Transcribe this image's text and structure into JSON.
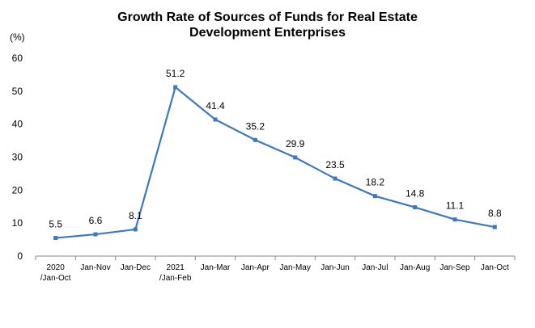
{
  "chart_data": {
    "type": "line",
    "title_line1": "Growth Rate of Sources of Funds for Real Estate",
    "title_line2": "Development Enterprises",
    "ylabel": "(%)",
    "xlabel": "",
    "ylim": [
      0,
      60
    ],
    "yticks": [
      "0",
      "10",
      "20",
      "30",
      "40",
      "50",
      "60"
    ],
    "grid": false,
    "categories": [
      [
        "2020",
        "/Jan-Oct"
      ],
      [
        "Jan-Nov"
      ],
      [
        "Jan-Dec"
      ],
      [
        "2021",
        "/Jan-Feb"
      ],
      [
        "Jan-Mar"
      ],
      [
        "Jan-Apr"
      ],
      [
        "Jan-May"
      ],
      [
        "Jan-Jun"
      ],
      [
        "Jan-Jul"
      ],
      [
        "Jan-Aug"
      ],
      [
        "Jan-Sep"
      ],
      [
        "Jan-Oct"
      ]
    ],
    "values": [
      5.5,
      6.6,
      8.1,
      51.2,
      41.4,
      35.2,
      29.9,
      23.5,
      18.2,
      14.8,
      11.1,
      8.8
    ],
    "labels": [
      "5.5",
      "6.6",
      "8.1",
      "51.2",
      "41.4",
      "35.2",
      "29.9",
      "23.5",
      "18.2",
      "14.8",
      "11.1",
      "8.8"
    ],
    "line_color": "#3A78C2"
  }
}
